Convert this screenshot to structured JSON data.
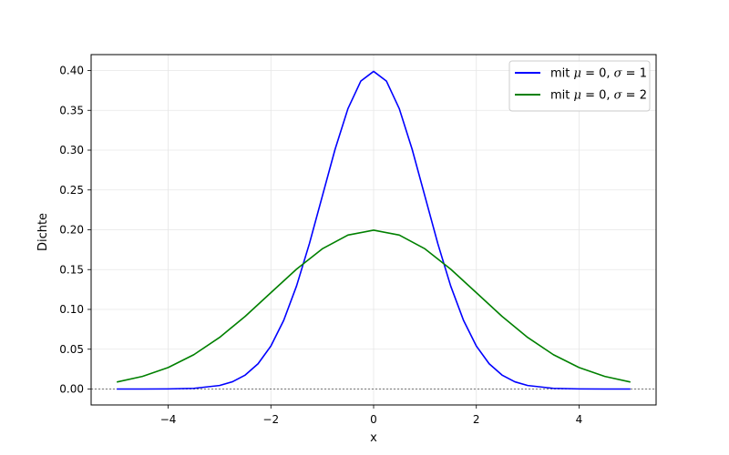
{
  "chart_data": {
    "type": "line",
    "title": "",
    "xlabel": "x",
    "ylabel": "Dichte",
    "xlim": [
      -5.5,
      5.5
    ],
    "ylim": [
      -0.02,
      0.42
    ],
    "x_ticks": [
      -4,
      -2,
      0,
      2,
      4
    ],
    "x_tick_labels": [
      "−4",
      "−2",
      "0",
      "2",
      "4"
    ],
    "y_ticks": [
      0.0,
      0.05,
      0.1,
      0.15,
      0.2,
      0.25,
      0.3,
      0.35,
      0.4
    ],
    "y_tick_labels": [
      "0.00",
      "0.05",
      "0.10",
      "0.15",
      "0.20",
      "0.25",
      "0.30",
      "0.35",
      "0.40"
    ],
    "grid": true,
    "legend_position": "top-right",
    "baseline": {
      "y": 0,
      "style": "dashed",
      "color": "#000000"
    },
    "series": [
      {
        "name": "mit μ = 0, σ = 1",
        "label_parts": {
          "prefix": "mit ",
          "mu_symbol": "μ",
          "mu_value": " = 0, ",
          "sigma_symbol": "σ",
          "sigma_value": " = 1"
        },
        "color": "#0000ff",
        "x": [
          -5,
          -4.5,
          -4,
          -3.5,
          -3,
          -2.75,
          -2.5,
          -2.25,
          -2,
          -1.75,
          -1.5,
          -1.25,
          -1,
          -0.75,
          -0.5,
          -0.25,
          0,
          0.25,
          0.5,
          0.75,
          1,
          1.25,
          1.5,
          1.75,
          2,
          2.25,
          2.5,
          2.75,
          3,
          3.5,
          4,
          4.5,
          5
        ],
        "y": [
          1.5e-06,
          1.6e-05,
          0.000134,
          0.00087,
          0.00443,
          0.00909,
          0.01753,
          0.03174,
          0.05399,
          0.08628,
          0.12952,
          0.18265,
          0.24197,
          0.30114,
          0.35207,
          0.38667,
          0.39894,
          0.38667,
          0.35207,
          0.30114,
          0.24197,
          0.18265,
          0.12952,
          0.08628,
          0.05399,
          0.03174,
          0.01753,
          0.00909,
          0.00443,
          0.00087,
          0.000134,
          1.6e-05,
          1.5e-06
        ]
      },
      {
        "name": "mit μ = 0, σ = 2",
        "label_parts": {
          "prefix": "mit ",
          "mu_symbol": "μ",
          "mu_value": " = 0, ",
          "sigma_symbol": "σ",
          "sigma_value": " = 2"
        },
        "color": "#008000",
        "x": [
          -5,
          -4.5,
          -4,
          -3.5,
          -3,
          -2.5,
          -2,
          -1.5,
          -1,
          -0.5,
          0,
          0.5,
          1,
          1.5,
          2,
          2.5,
          3,
          3.5,
          4,
          4.5,
          5
        ],
        "y": [
          0.00876,
          0.01587,
          0.027,
          0.04317,
          0.06476,
          0.09132,
          0.12099,
          0.15057,
          0.17603,
          0.19333,
          0.19947,
          0.19333,
          0.17603,
          0.15057,
          0.12099,
          0.09132,
          0.06476,
          0.04317,
          0.027,
          0.01587,
          0.00876
        ]
      }
    ]
  }
}
